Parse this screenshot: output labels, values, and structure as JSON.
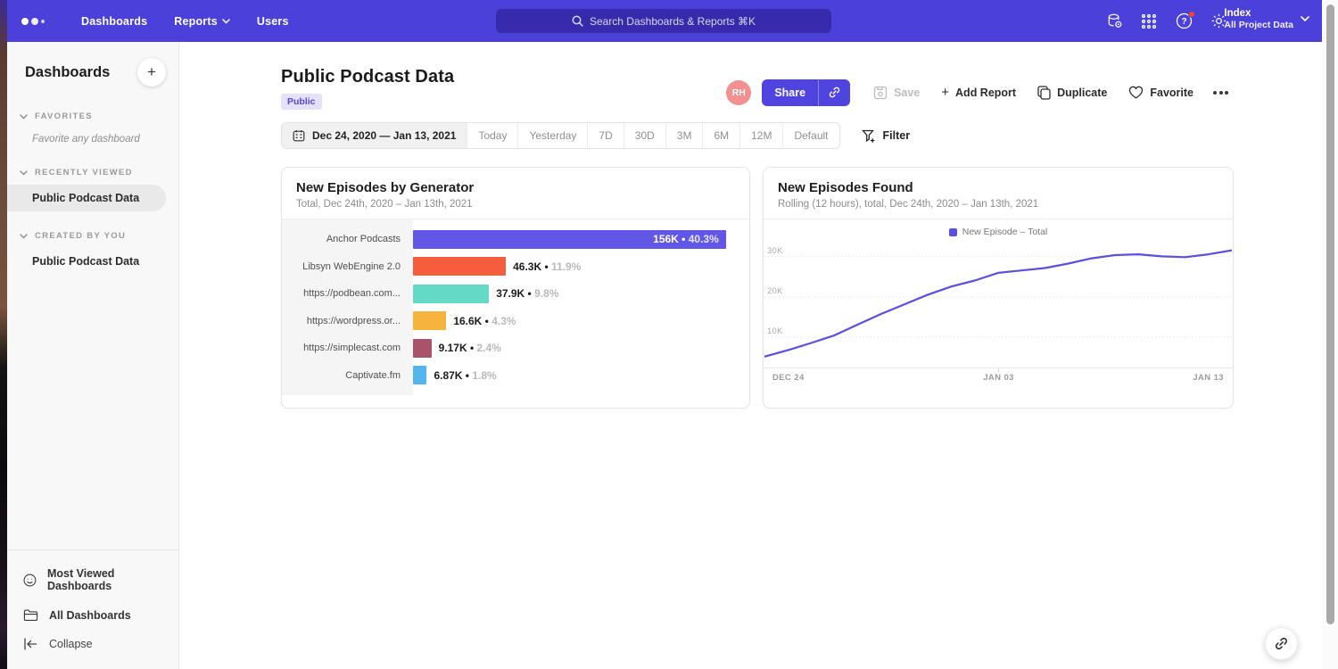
{
  "navbar": {
    "items": [
      {
        "label": "Dashboards"
      },
      {
        "label": "Reports"
      },
      {
        "label": "Users"
      }
    ],
    "search_placeholder": "Search Dashboards & Reports ⌘K",
    "project": {
      "name": "Index",
      "scope": "All Project Data"
    }
  },
  "icons": {
    "logo": "three-dots-logo",
    "search": "magnifier",
    "data": "database-gear",
    "apps": "grid-9-dots",
    "help": "question-circle-with-badge",
    "settings": "gear",
    "calendar": "calendar",
    "filter": "funnel-plus",
    "share_link": "chain-link",
    "save": "floppy-disk",
    "add_report": "plus",
    "duplicate": "copy-squares",
    "favorite": "heart-outline",
    "more": "three-dots",
    "most_viewed": "smiley-face",
    "all_dashboards": "folder",
    "collapse": "arrow-bar-left",
    "fab": "chain-link"
  },
  "sidebar": {
    "title": "Dashboards",
    "sections": [
      {
        "label": "FAVORITES",
        "empty_text": "Favorite any dashboard"
      },
      {
        "label": "RECENTLY VIEWED",
        "items": [
          {
            "label": "Public Podcast Data",
            "selected": true
          }
        ]
      },
      {
        "label": "CREATED BY YOU",
        "items": [
          {
            "label": "Public Podcast Data",
            "selected": false
          }
        ]
      }
    ],
    "footer": [
      {
        "label": "Most Viewed Dashboards"
      },
      {
        "label": "All Dashboards"
      },
      {
        "label": "Collapse"
      }
    ]
  },
  "header": {
    "title": "Public Podcast Data",
    "badge": "Public",
    "avatar_initials": "RH",
    "actions": {
      "share": "Share",
      "save": "Save",
      "add_report": "Add Report",
      "duplicate": "Duplicate",
      "favorite": "Favorite"
    }
  },
  "datebar": {
    "range": "Dec 24, 2020 — Jan 13, 2021",
    "presets": [
      "Today",
      "Yesterday",
      "7D",
      "30D",
      "3M",
      "6M",
      "12M",
      "Default"
    ],
    "filter_label": "Filter"
  },
  "chart_data": [
    {
      "type": "bar",
      "orientation": "horizontal",
      "title": "New Episodes by Generator",
      "subtitle": "Total, Dec 24th, 2020 – Jan 13th, 2021",
      "categories": [
        "Anchor Podcasts",
        "Libsyn WebEngine 2.0",
        "https://podbean.com...",
        "https://wordpress.or...",
        "https://simplecast.com",
        "Captivate.fm"
      ],
      "values": [
        156000,
        46300,
        37900,
        16600,
        9170,
        6870
      ],
      "value_labels": [
        "156K",
        "46.3K",
        "37.9K",
        "16.6K",
        "9.17K",
        "6.87K"
      ],
      "percent_labels": [
        "40.3%",
        "11.9%",
        "9.8%",
        "4.3%",
        "2.4%",
        "1.8%"
      ],
      "colors": [
        "#6156e6",
        "#f65d3c",
        "#64d9c6",
        "#f6b33d",
        "#a8536a",
        "#54b4ec"
      ],
      "xmax": 165000
    },
    {
      "type": "line",
      "title": "New Episodes Found",
      "subtitle": "Rolling (12 hours), total, Dec 24th, 2020 – Jan 13th, 2021",
      "legend": [
        {
          "label": "New Episode – Total",
          "color": "#5a50e0"
        }
      ],
      "color": "#5a50e0",
      "x": [
        "Dec 24",
        "Dec 25",
        "Dec 26",
        "Dec 27",
        "Dec 28",
        "Dec 29",
        "Dec 30",
        "Dec 31",
        "Jan 01",
        "Jan 02",
        "Jan 03",
        "Jan 04",
        "Jan 05",
        "Jan 06",
        "Jan 07",
        "Jan 08",
        "Jan 09",
        "Jan 10",
        "Jan 11",
        "Jan 12",
        "Jan 13"
      ],
      "values": [
        5200,
        6800,
        8600,
        10500,
        13200,
        15800,
        18200,
        20600,
        22600,
        24100,
        26000,
        26600,
        27200,
        28300,
        29600,
        30400,
        30600,
        30100,
        29900,
        30600,
        31600
      ],
      "x_ticks": [
        "DEC 24",
        "JAN 03",
        "JAN 13"
      ],
      "y_ticks": [
        "10K",
        "20K",
        "30K"
      ],
      "y_tick_values": [
        10000,
        20000,
        30000
      ],
      "ylim": [
        2500,
        33500
      ],
      "grid": "dotted-horizontal",
      "legend_position": "top-center"
    }
  ],
  "colors": {
    "navbar": "#4b40d9",
    "accent": "#4f44e0",
    "avatar_bg": "#f28f90",
    "notification": "#f4442e",
    "sidebar_bg": "#f8f8f8"
  }
}
